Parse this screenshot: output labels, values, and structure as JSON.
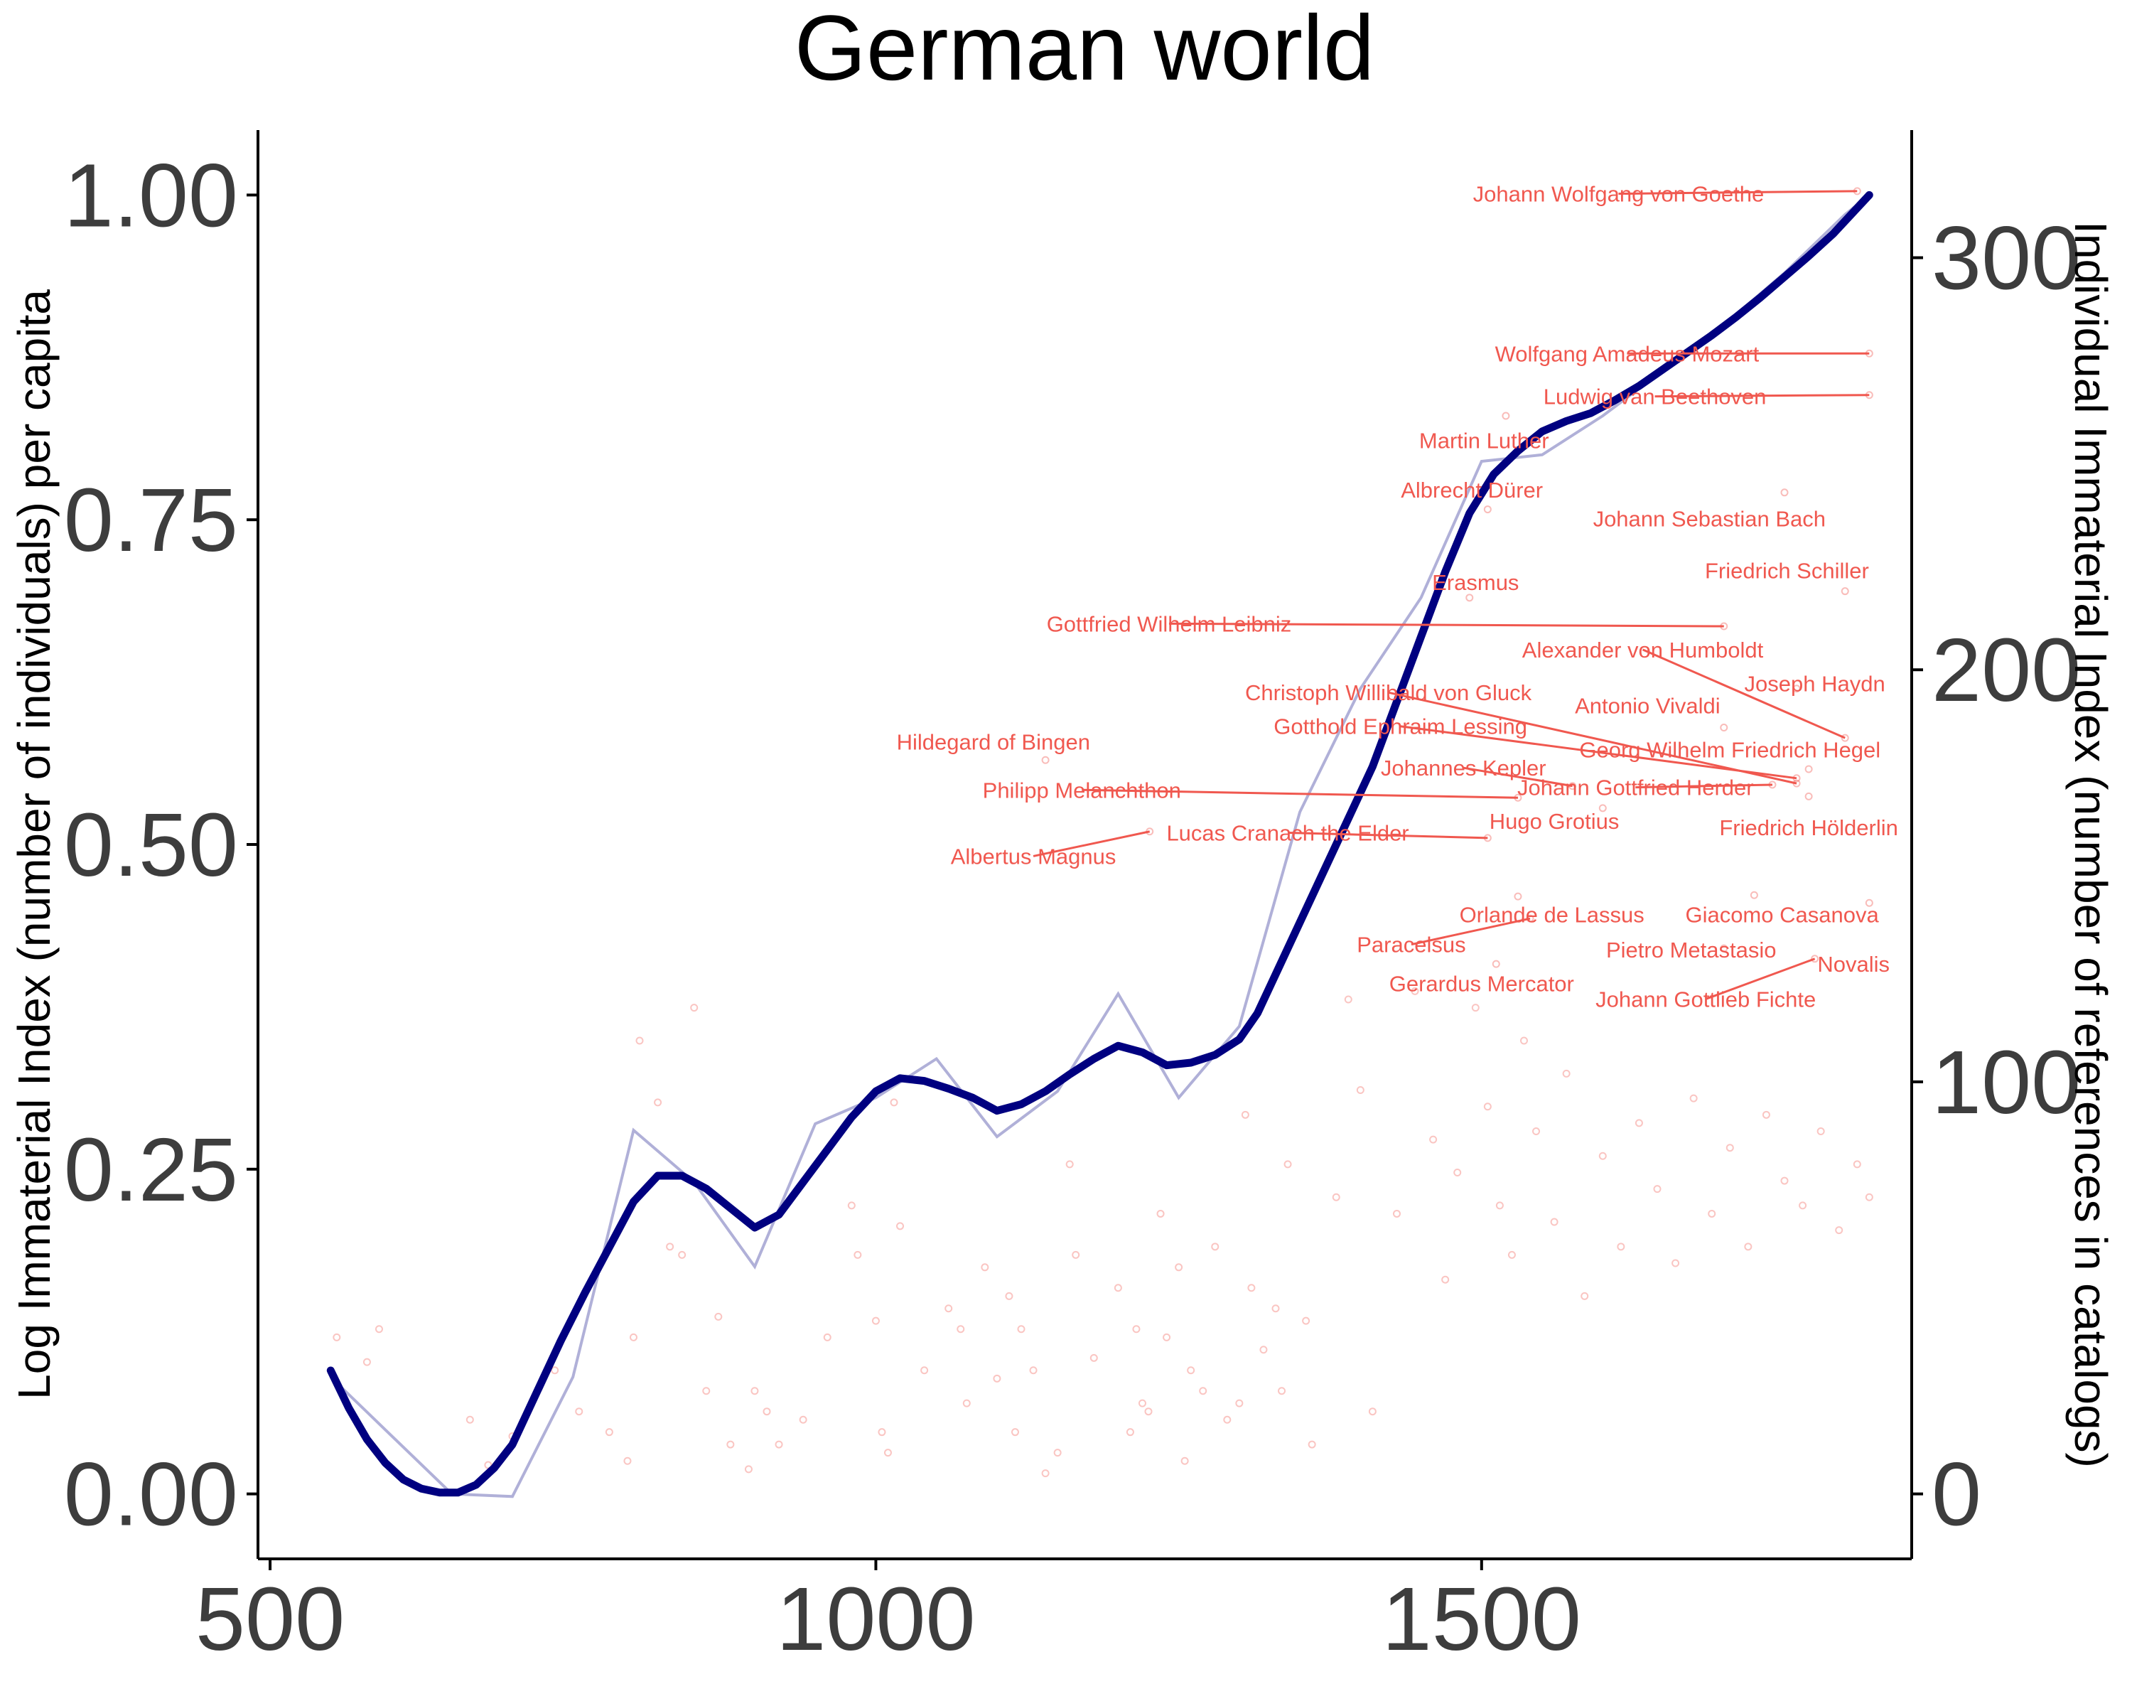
{
  "chart_data": {
    "type": "line",
    "title": "German world",
    "ylabel_left": "Log Immaterial Index (number of individuals) per capita",
    "ylabel_right": "Individual Immaterial Index (number of references in catalogs)",
    "xlabel": "",
    "xlim": [
      490,
      1855
    ],
    "ylim_left": [
      -0.05,
      1.05
    ],
    "ylim_right": [
      -15.76,
      330.97
    ],
    "x_ticks": [
      500,
      1000,
      1500
    ],
    "y_left_ticks": [
      0.0,
      0.25,
      0.5,
      0.75,
      1.0
    ],
    "y_left_tick_labels": [
      "0.00",
      "0.25",
      "0.50",
      "0.75",
      "1.00"
    ],
    "y_right_ticks": [
      0,
      100,
      200,
      300
    ],
    "colors": {
      "smooth": "#000080",
      "raw": "#b0b0d8",
      "points": "#f0584f",
      "labels": "#f0584f"
    },
    "series": [
      {
        "role": "raw",
        "x": [
          550,
          600,
          650,
          700,
          750,
          800,
          850,
          900,
          950,
          1000,
          1050,
          1100,
          1150,
          1200,
          1250,
          1300,
          1350,
          1400,
          1450,
          1500,
          1550,
          1600,
          1650,
          1700,
          1750,
          1800,
          1820
        ],
        "y": [
          0.09,
          0.045,
          0.0,
          -0.002,
          0.09,
          0.28,
          0.24,
          0.175,
          0.285,
          0.305,
          0.335,
          0.275,
          0.31,
          0.385,
          0.305,
          0.36,
          0.525,
          0.62,
          0.69,
          0.795,
          0.8,
          0.83,
          0.865,
          0.9,
          0.94,
          0.985,
          1.0
        ]
      },
      {
        "role": "smoothed",
        "x": [
          550,
          565,
          580,
          595,
          610,
          625,
          640,
          655,
          670,
          685,
          700,
          720,
          740,
          760,
          780,
          800,
          820,
          840,
          860,
          880,
          900,
          920,
          940,
          960,
          980,
          1000,
          1020,
          1040,
          1060,
          1080,
          1100,
          1120,
          1140,
          1160,
          1180,
          1200,
          1220,
          1240,
          1260,
          1280,
          1300,
          1315,
          1330,
          1350,
          1370,
          1390,
          1410,
          1430,
          1450,
          1470,
          1490,
          1510,
          1530,
          1550,
          1570,
          1590,
          1610,
          1630,
          1650,
          1670,
          1690,
          1710,
          1730,
          1750,
          1770,
          1790,
          1810,
          1820
        ],
        "y": [
          0.095,
          0.066,
          0.042,
          0.024,
          0.011,
          0.004,
          0.001,
          0.001,
          0.007,
          0.02,
          0.038,
          0.078,
          0.118,
          0.155,
          0.19,
          0.225,
          0.245,
          0.245,
          0.235,
          0.22,
          0.205,
          0.215,
          0.24,
          0.265,
          0.29,
          0.31,
          0.32,
          0.318,
          0.312,
          0.305,
          0.295,
          0.3,
          0.31,
          0.323,
          0.335,
          0.345,
          0.34,
          0.33,
          0.332,
          0.338,
          0.35,
          0.37,
          0.4,
          0.44,
          0.48,
          0.52,
          0.56,
          0.61,
          0.66,
          0.71,
          0.755,
          0.785,
          0.803,
          0.818,
          0.826,
          0.832,
          0.842,
          0.853,
          0.866,
          0.879,
          0.892,
          0.906,
          0.921,
          0.937,
          0.953,
          0.97,
          0.99,
          1.0
        ]
      }
    ],
    "annotations": [
      {
        "text": "Johann Wolfgang von Goethe",
        "label_x": 1613,
        "label_y": 1.001,
        "x": 1810,
        "y": 1.003
      },
      {
        "text": "Wolfgang Amadeus Mozart",
        "label_x": 1620,
        "label_y": 0.878,
        "x": 1820,
        "y": 0.878
      },
      {
        "text": "Ludwig van Beethoven",
        "label_x": 1643,
        "label_y": 0.845,
        "x": 1820,
        "y": 0.846
      },
      {
        "text": "Martin Luther",
        "label_x": 1502,
        "label_y": 0.811,
        "x": 1520,
        "y": 0.83
      },
      {
        "text": "Albrecht Dürer",
        "label_x": 1492,
        "label_y": 0.773,
        "x": 1505,
        "y": 0.758
      },
      {
        "text": "Johann Sebastian Bach",
        "label_x": 1688,
        "label_y": 0.751,
        "x": 1750,
        "y": 0.771
      },
      {
        "text": "Friedrich Schiller",
        "label_x": 1752,
        "label_y": 0.711,
        "x": 1800,
        "y": 0.695
      },
      {
        "text": "Erasmus",
        "label_x": 1495,
        "label_y": 0.702,
        "x": 1490,
        "y": 0.69
      },
      {
        "text": "Gottfried Wilhelm Leibniz",
        "label_x": 1242,
        "label_y": 0.67,
        "x": 1700,
        "y": 0.668
      },
      {
        "text": "Alexander von Humboldt",
        "label_x": 1633,
        "label_y": 0.65,
        "x": 1800,
        "y": 0.582
      },
      {
        "text": "Joseph Haydn",
        "label_x": 1775,
        "label_y": 0.624,
        "x": 1760,
        "y": 0.62
      },
      {
        "text": "Christoph Willibald von Gluck",
        "label_x": 1423,
        "label_y": 0.617,
        "x": 1760,
        "y": 0.547
      },
      {
        "text": "Antonio Vivaldi",
        "label_x": 1637,
        "label_y": 0.607,
        "x": 1700,
        "y": 0.59
      },
      {
        "text": "Gotthold Ephraim Lessing",
        "label_x": 1433,
        "label_y": 0.591,
        "x": 1760,
        "y": 0.551
      },
      {
        "text": "Georg Wilhelm Friedrich Hegel",
        "label_x": 1705,
        "label_y": 0.573,
        "x": 1770,
        "y": 0.558
      },
      {
        "text": "Hildegard of Bingen",
        "label_x": 1097,
        "label_y": 0.579,
        "x": 1140,
        "y": 0.565
      },
      {
        "text": "Johannes Kepler",
        "label_x": 1485,
        "label_y": 0.559,
        "x": 1575,
        "y": 0.545
      },
      {
        "text": "Johann Gottfried Herder",
        "label_x": 1627,
        "label_y": 0.544,
        "x": 1740,
        "y": 0.546
      },
      {
        "text": "Philipp Melanchthon",
        "label_x": 1170,
        "label_y": 0.542,
        "x": 1530,
        "y": 0.536
      },
      {
        "text": "Hugo Grotius",
        "label_x": 1560,
        "label_y": 0.518,
        "x": 1600,
        "y": 0.528
      },
      {
        "text": "Friedrich Hölderlin",
        "label_x": 1770,
        "label_y": 0.513,
        "x": 1770,
        "y": 0.537
      },
      {
        "text": "Lucas Cranach the Elder",
        "label_x": 1340,
        "label_y": 0.509,
        "x": 1505,
        "y": 0.505
      },
      {
        "text": "Albertus Magnus",
        "label_x": 1130,
        "label_y": 0.491,
        "x": 1226,
        "y": 0.51
      },
      {
        "text": "Orlande de Lassus",
        "label_x": 1558,
        "label_y": 0.446,
        "x": 1530,
        "y": 0.46
      },
      {
        "text": "Giacomo Casanova",
        "label_x": 1748,
        "label_y": 0.446,
        "x": 1725,
        "y": 0.461
      },
      {
        "text": "Paracelsus",
        "label_x": 1442,
        "label_y": 0.423,
        "x": 1540,
        "y": 0.443
      },
      {
        "text": "Pietro Metastasio",
        "label_x": 1673,
        "label_y": 0.419,
        "x": 1700,
        "y": 0.42
      },
      {
        "text": "Novalis",
        "label_x": 1807,
        "label_y": 0.408,
        "x": 1820,
        "y": 0.455
      },
      {
        "text": "Gerardus Mercator",
        "label_x": 1500,
        "label_y": 0.393,
        "x": 1512,
        "y": 0.408
      },
      {
        "text": "Johann Gottlieb Fichte",
        "label_x": 1685,
        "label_y": 0.381,
        "x": 1775,
        "y": 0.412
      }
    ],
    "scatter_points_right_axis": [
      [
        555,
        38
      ],
      [
        580,
        32
      ],
      [
        590,
        40
      ],
      [
        665,
        18
      ],
      [
        680,
        7
      ],
      [
        700,
        14
      ],
      [
        735,
        30
      ],
      [
        755,
        20
      ],
      [
        780,
        15
      ],
      [
        795,
        8
      ],
      [
        800,
        38
      ],
      [
        805,
        110
      ],
      [
        820,
        95
      ],
      [
        830,
        60
      ],
      [
        840,
        58
      ],
      [
        850,
        118
      ],
      [
        860,
        25
      ],
      [
        870,
        43
      ],
      [
        880,
        12
      ],
      [
        895,
        6
      ],
      [
        900,
        25
      ],
      [
        910,
        20
      ],
      [
        920,
        12
      ],
      [
        940,
        18
      ],
      [
        960,
        38
      ],
      [
        980,
        70
      ],
      [
        985,
        58
      ],
      [
        1000,
        42
      ],
      [
        1005,
        15
      ],
      [
        1010,
        10
      ],
      [
        1015,
        95
      ],
      [
        1020,
        65
      ],
      [
        1040,
        30
      ],
      [
        1060,
        45
      ],
      [
        1070,
        40
      ],
      [
        1075,
        22
      ],
      [
        1090,
        55
      ],
      [
        1100,
        28
      ],
      [
        1110,
        48
      ],
      [
        1115,
        15
      ],
      [
        1120,
        40
      ],
      [
        1130,
        30
      ],
      [
        1140,
        5
      ],
      [
        1150,
        10
      ],
      [
        1160,
        80
      ],
      [
        1165,
        58
      ],
      [
        1180,
        33
      ],
      [
        1200,
        50
      ],
      [
        1210,
        15
      ],
      [
        1215,
        40
      ],
      [
        1220,
        22
      ],
      [
        1225,
        20
      ],
      [
        1235,
        68
      ],
      [
        1240,
        38
      ],
      [
        1250,
        55
      ],
      [
        1255,
        8
      ],
      [
        1260,
        30
      ],
      [
        1270,
        25
      ],
      [
        1280,
        60
      ],
      [
        1290,
        18
      ],
      [
        1300,
        22
      ],
      [
        1305,
        92
      ],
      [
        1310,
        50
      ],
      [
        1320,
        35
      ],
      [
        1330,
        45
      ],
      [
        1335,
        25
      ],
      [
        1340,
        80
      ],
      [
        1355,
        42
      ],
      [
        1360,
        12
      ],
      [
        1380,
        72
      ],
      [
        1390,
        120
      ],
      [
        1400,
        98
      ],
      [
        1410,
        20
      ],
      [
        1430,
        68
      ],
      [
        1445,
        122
      ],
      [
        1460,
        86
      ],
      [
        1470,
        52
      ],
      [
        1480,
        78
      ],
      [
        1495,
        118
      ],
      [
        1505,
        94
      ],
      [
        1515,
        70
      ],
      [
        1525,
        58
      ],
      [
        1535,
        110
      ],
      [
        1545,
        88
      ],
      [
        1560,
        66
      ],
      [
        1570,
        102
      ],
      [
        1585,
        48
      ],
      [
        1600,
        82
      ],
      [
        1615,
        60
      ],
      [
        1630,
        90
      ],
      [
        1645,
        74
      ],
      [
        1660,
        56
      ],
      [
        1675,
        96
      ],
      [
        1690,
        68
      ],
      [
        1705,
        84
      ],
      [
        1720,
        60
      ],
      [
        1735,
        92
      ],
      [
        1750,
        76
      ],
      [
        1765,
        70
      ],
      [
        1780,
        88
      ],
      [
        1795,
        64
      ],
      [
        1810,
        80
      ],
      [
        1820,
        72
      ]
    ]
  }
}
